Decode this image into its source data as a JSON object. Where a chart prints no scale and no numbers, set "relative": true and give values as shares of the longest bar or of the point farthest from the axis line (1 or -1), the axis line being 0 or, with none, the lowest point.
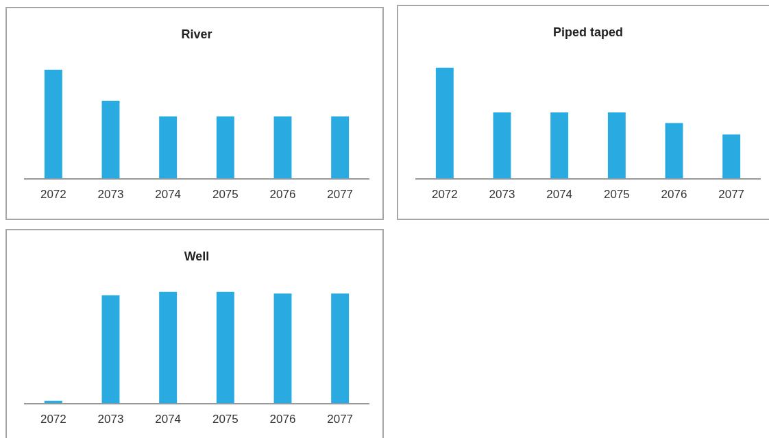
{
  "chart_data": [
    {
      "type": "bar",
      "title": "River",
      "categories": [
        "2072",
        "2073",
        "2074",
        "2075",
        "2076",
        "2077"
      ],
      "relative": true,
      "color": "#29abe2",
      "values": [
        1,
        0.714,
        0.571,
        0.571,
        0.571,
        0.571
      ],
      "grid": false,
      "legend": false
    },
    {
      "type": "bar",
      "title": "Piped taped",
      "categories": [
        "2072",
        "2073",
        "2074",
        "2075",
        "2076",
        "2077"
      ],
      "relative": true,
      "color": "#29abe2",
      "values": [
        1,
        0.596,
        0.596,
        0.596,
        0.5,
        0.397
      ],
      "grid": false,
      "legend": false
    },
    {
      "type": "bar",
      "title": "Well",
      "categories": [
        "2072",
        "2073",
        "2074",
        "2075",
        "2076",
        "2077"
      ],
      "relative": true,
      "color": "#29abe2",
      "values": [
        0.023,
        0.969,
        1,
        1,
        0.984,
        0.984
      ],
      "grid": false,
      "legend": false
    }
  ]
}
